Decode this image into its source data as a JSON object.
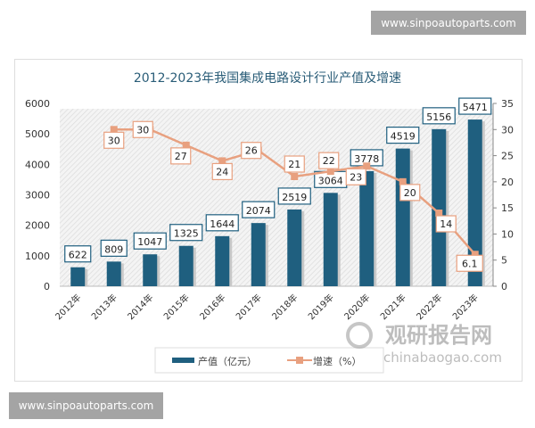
{
  "watermarks": {
    "top": "www.sinpoautoparts.com",
    "bottom": "www.sinpoautoparts.com",
    "logo_cn": "观研报告网",
    "logo_en": "chinabaogao.com"
  },
  "chart_data": {
    "type": "bar",
    "title": "2012-2023年我国集成电路设计行业产值及增速",
    "categories": [
      "2012年",
      "2013年",
      "2014年",
      "2015年",
      "2016年",
      "2017年",
      "2018年",
      "2019年",
      "2020年",
      "2021年",
      "2022年",
      "2023年"
    ],
    "series": [
      {
        "name": "产值（亿元）",
        "type": "bar",
        "axis": "left",
        "color": "#1f5f7f",
        "values": [
          622,
          809,
          1047,
          1325,
          1644,
          2074,
          2519,
          3064,
          3778,
          4519,
          5156,
          5471
        ]
      },
      {
        "name": "增速（%）",
        "type": "line",
        "axis": "right",
        "color": "#e8a07f",
        "values": [
          null,
          30,
          30,
          27,
          24,
          26,
          21,
          22,
          23,
          20,
          14,
          6.1
        ]
      }
    ],
    "yleft": {
      "ylim": [
        0,
        6000
      ],
      "ticks": [
        0,
        1000,
        2000,
        3000,
        4000,
        5000,
        6000
      ]
    },
    "yright": {
      "ylim": [
        0,
        35
      ],
      "ticks": [
        0,
        5,
        10,
        15,
        20,
        25,
        30,
        35
      ]
    },
    "legend": "bottom",
    "grid": false
  }
}
